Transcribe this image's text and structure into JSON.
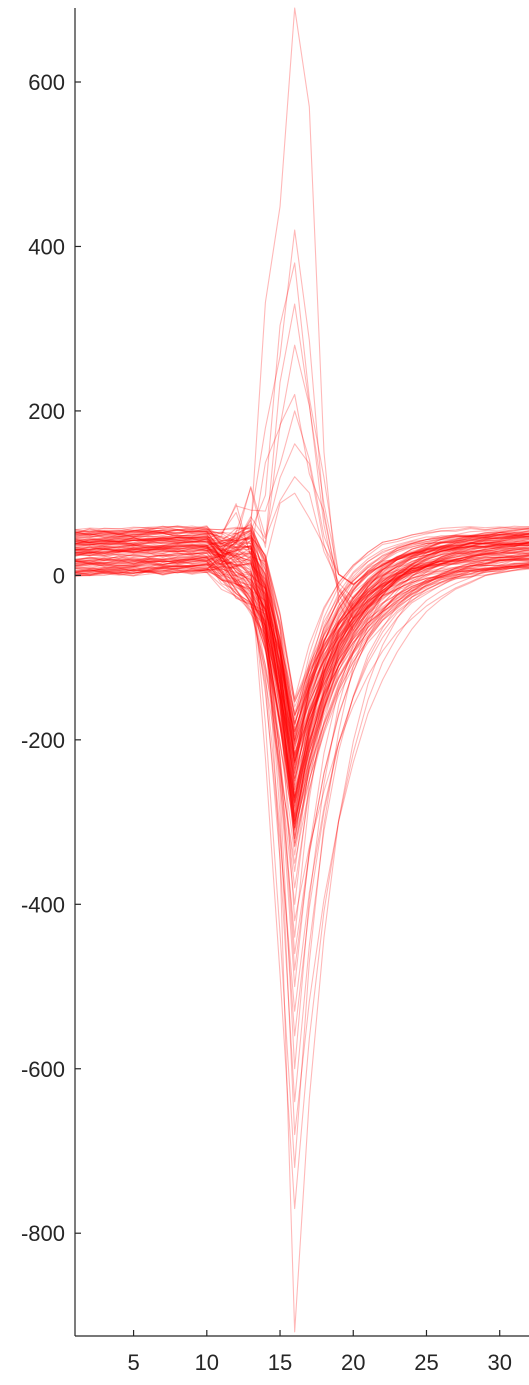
{
  "chart_data": {
    "type": "line",
    "title": "",
    "xlabel": "",
    "ylabel": "",
    "xlim": [
      1,
      32
    ],
    "ylim": [
      -925,
      690
    ],
    "x_ticks": [
      5,
      10,
      15,
      20,
      25,
      30
    ],
    "y_ticks": [
      -800,
      -600,
      -400,
      -200,
      0,
      200,
      400,
      600
    ],
    "grid": false,
    "legend": "none",
    "series_color": "#ff0000",
    "series_opacity": 0.28,
    "x": [
      1,
      2,
      3,
      4,
      5,
      6,
      7,
      8,
      9,
      10,
      11,
      12,
      13,
      14,
      15,
      16,
      17,
      18,
      19,
      20,
      21,
      22,
      23,
      24,
      25,
      26,
      27,
      28,
      29,
      30,
      31,
      32
    ],
    "templates": {
      "negative_spike": {
        "trough_depths": [
          -150,
          -160,
          -170,
          -180,
          -190,
          -200,
          -210,
          -220,
          -230,
          -240,
          -250,
          -260,
          -270,
          -280,
          -290,
          -300,
          -310,
          -320,
          -330,
          -340,
          -350,
          -360,
          -380,
          -400,
          -420,
          -440,
          -460,
          -480,
          -500,
          -530,
          -560,
          -600,
          -640,
          -680,
          -720,
          -770,
          -920
        ],
        "baseline_range": [
          -30,
          80
        ],
        "peak_sample": 16
      },
      "positive_spike": {
        "peak_heights": [
          100,
          120,
          160,
          200,
          220,
          280,
          330,
          380,
          420,
          690
        ],
        "pre_dip": [
          -40,
          -80
        ],
        "peak_sample": 16
      }
    }
  }
}
